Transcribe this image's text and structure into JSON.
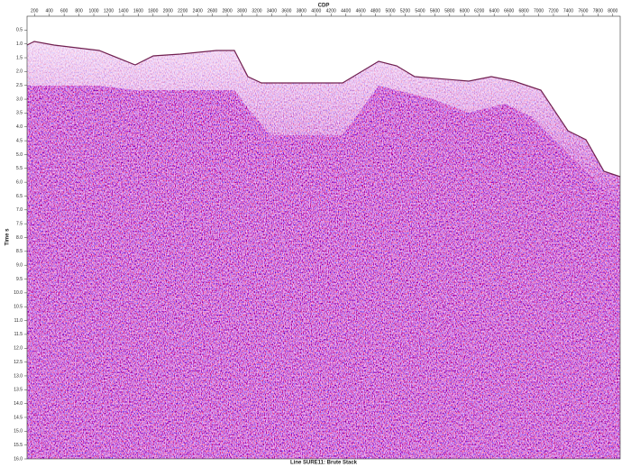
{
  "chart_data": {
    "type": "seismic",
    "title": "Line SURE11: Brute Stack",
    "xlabel": "CDP",
    "ylabel": "Time s",
    "xlim": [
      100,
      8100
    ],
    "xticks": [
      200,
      400,
      600,
      800,
      1000,
      1200,
      1400,
      1600,
      1800,
      2000,
      2200,
      2400,
      2600,
      2800,
      3000,
      3200,
      3400,
      3600,
      3800,
      4000,
      4200,
      4400,
      4600,
      4800,
      5000,
      5200,
      5400,
      5600,
      5800,
      6000,
      6200,
      6400,
      6600,
      6800,
      7000,
      7200,
      7400,
      7600,
      7800,
      8000
    ],
    "ylim": [
      0,
      16
    ],
    "yticks": [
      0.5,
      {
        "value": 1,
        "label": "1.0"
      },
      1.5,
      {
        "value": 2,
        "label": "2.0"
      },
      2.5,
      {
        "value": 3,
        "label": "3.0"
      },
      3.5,
      {
        "value": 4,
        "label": "4.0"
      },
      4.5,
      {
        "value": 5,
        "label": "5.0"
      },
      5.5,
      {
        "value": 6,
        "label": "6.0"
      },
      6.5,
      {
        "value": 7,
        "label": "7.0"
      },
      7.5,
      {
        "value": 8,
        "label": "8.0"
      },
      8.5,
      {
        "value": 9,
        "label": "9.0"
      },
      9.5,
      {
        "value": 10,
        "label": "10.0"
      },
      10.5,
      {
        "value": 11,
        "label": "11.0"
      },
      11.5,
      {
        "value": 12,
        "label": "12.0"
      },
      12.5,
      {
        "value": 13,
        "label": "13.0"
      },
      13.5,
      {
        "value": 14,
        "label": "14.0"
      },
      14.5,
      {
        "value": 15,
        "label": "15.0"
      },
      15.5,
      {
        "value": 16,
        "label": "16.0"
      }
    ]
  }
}
